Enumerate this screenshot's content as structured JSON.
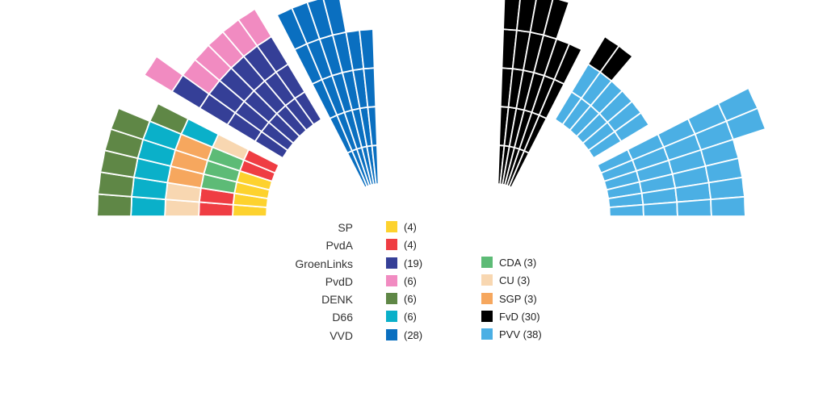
{
  "parties": [
    {
      "name": "SP",
      "seats_label": "(4)",
      "seats": 4,
      "color": "#FDD22E"
    },
    {
      "name": "PvdA",
      "seats_label": "(4)",
      "seats": 4,
      "color": "#EF3D43"
    },
    {
      "name": "GroenLinks",
      "seats_label": "(19)",
      "seats": 19,
      "color": "#353F97"
    },
    {
      "name": "PvdD",
      "seats_label": "(6)",
      "seats": 6,
      "color": "#F18BC1"
    },
    {
      "name": "DENK",
      "seats_label": "(6)",
      "seats": 6,
      "color": "#5F8746"
    },
    {
      "name": "D66",
      "seats_label": "(6)",
      "seats": 6,
      "color": "#0AB0C9"
    },
    {
      "name": "VVD",
      "seats_label": "(28)",
      "seats": 28,
      "color": "#0A6FC0"
    },
    {
      "name": "CDA",
      "seats_label": "(3)",
      "seats": 3,
      "color": "#5DBB76"
    },
    {
      "name": "CU",
      "seats_label": "(3)",
      "seats": 3,
      "color": "#F8D7B1"
    },
    {
      "name": "SGP",
      "seats_label": "(3)",
      "seats": 3,
      "color": "#F6A75E"
    },
    {
      "name": "FvD",
      "seats_label": "(30)",
      "seats": 30,
      "color": "#000000"
    },
    {
      "name": "PVV",
      "seats_label": "(38)",
      "seats": 38,
      "color": "#4BAFE4"
    }
  ],
  "legend": {
    "left": [
      {
        "name": "SP",
        "count": "(4)",
        "color": "#FDD22E"
      },
      {
        "name": "PvdA",
        "count": "(4)",
        "color": "#EF3D43"
      },
      {
        "name": "GroenLinks",
        "count": "(19)",
        "color": "#353F97"
      },
      {
        "name": "PvdD",
        "count": "(6)",
        "color": "#F18BC1"
      },
      {
        "name": "DENK",
        "count": "(6)",
        "color": "#5F8746"
      },
      {
        "name": "D66",
        "count": "(6)",
        "color": "#0AB0C9"
      },
      {
        "name": "VVD",
        "count": "(28)",
        "color": "#0A6FC0"
      }
    ],
    "right": [
      {
        "label": "CDA (3)",
        "color": "#5DBB76"
      },
      {
        "label": "CU (3)",
        "color": "#F8D7B1"
      },
      {
        "label": "SGP (3)",
        "color": "#F6A75E"
      },
      {
        "label": "FvD (30)",
        "color": "#000000"
      },
      {
        "label": "PVV (38)",
        "color": "#4BAFE4"
      }
    ]
  }
}
